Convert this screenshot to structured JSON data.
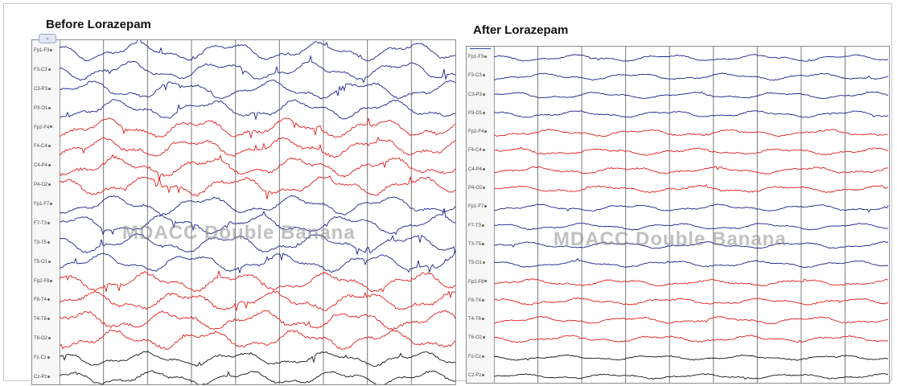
{
  "figure": {
    "before": {
      "title": "Before Lorazepam",
      "collapse_glyph": "⌄",
      "watermark": "MDACC Double Banana",
      "amplitude_scale": 1.0,
      "noise_level": 1.0
    },
    "after": {
      "title": "After Lorazepam",
      "watermark": "MDACC Double Banana",
      "amplitude_scale": 0.35,
      "noise_level": 0.55
    }
  },
  "channels": [
    {
      "label": "Fp1-F3",
      "group": "left"
    },
    {
      "label": "F3-C3",
      "group": "left"
    },
    {
      "label": "C3-P3",
      "group": "left"
    },
    {
      "label": "P3-O1",
      "group": "left"
    },
    {
      "label": "Fp2-F4",
      "group": "right"
    },
    {
      "label": "F4-C4",
      "group": "right"
    },
    {
      "label": "C4-P4",
      "group": "right"
    },
    {
      "label": "P4-O2",
      "group": "right"
    },
    {
      "label": "Fp1-F7",
      "group": "left"
    },
    {
      "label": "F7-T3",
      "group": "left"
    },
    {
      "label": "T3-T5",
      "group": "left"
    },
    {
      "label": "T5-O1",
      "group": "left"
    },
    {
      "label": "Fp2-F8",
      "group": "right"
    },
    {
      "label": "F8-T4",
      "group": "right"
    },
    {
      "label": "T4-T6",
      "group": "right"
    },
    {
      "label": "T6-O2",
      "group": "right"
    },
    {
      "label": "Fz-Cz",
      "group": "midline"
    },
    {
      "label": "Cz-Pz",
      "group": "midline"
    }
  ],
  "colors": {
    "left": "#1c1f8a",
    "right": "#e01b1b",
    "midline": "#111111",
    "gridline": "#7a7a7a"
  },
  "time_divisions": 9
}
